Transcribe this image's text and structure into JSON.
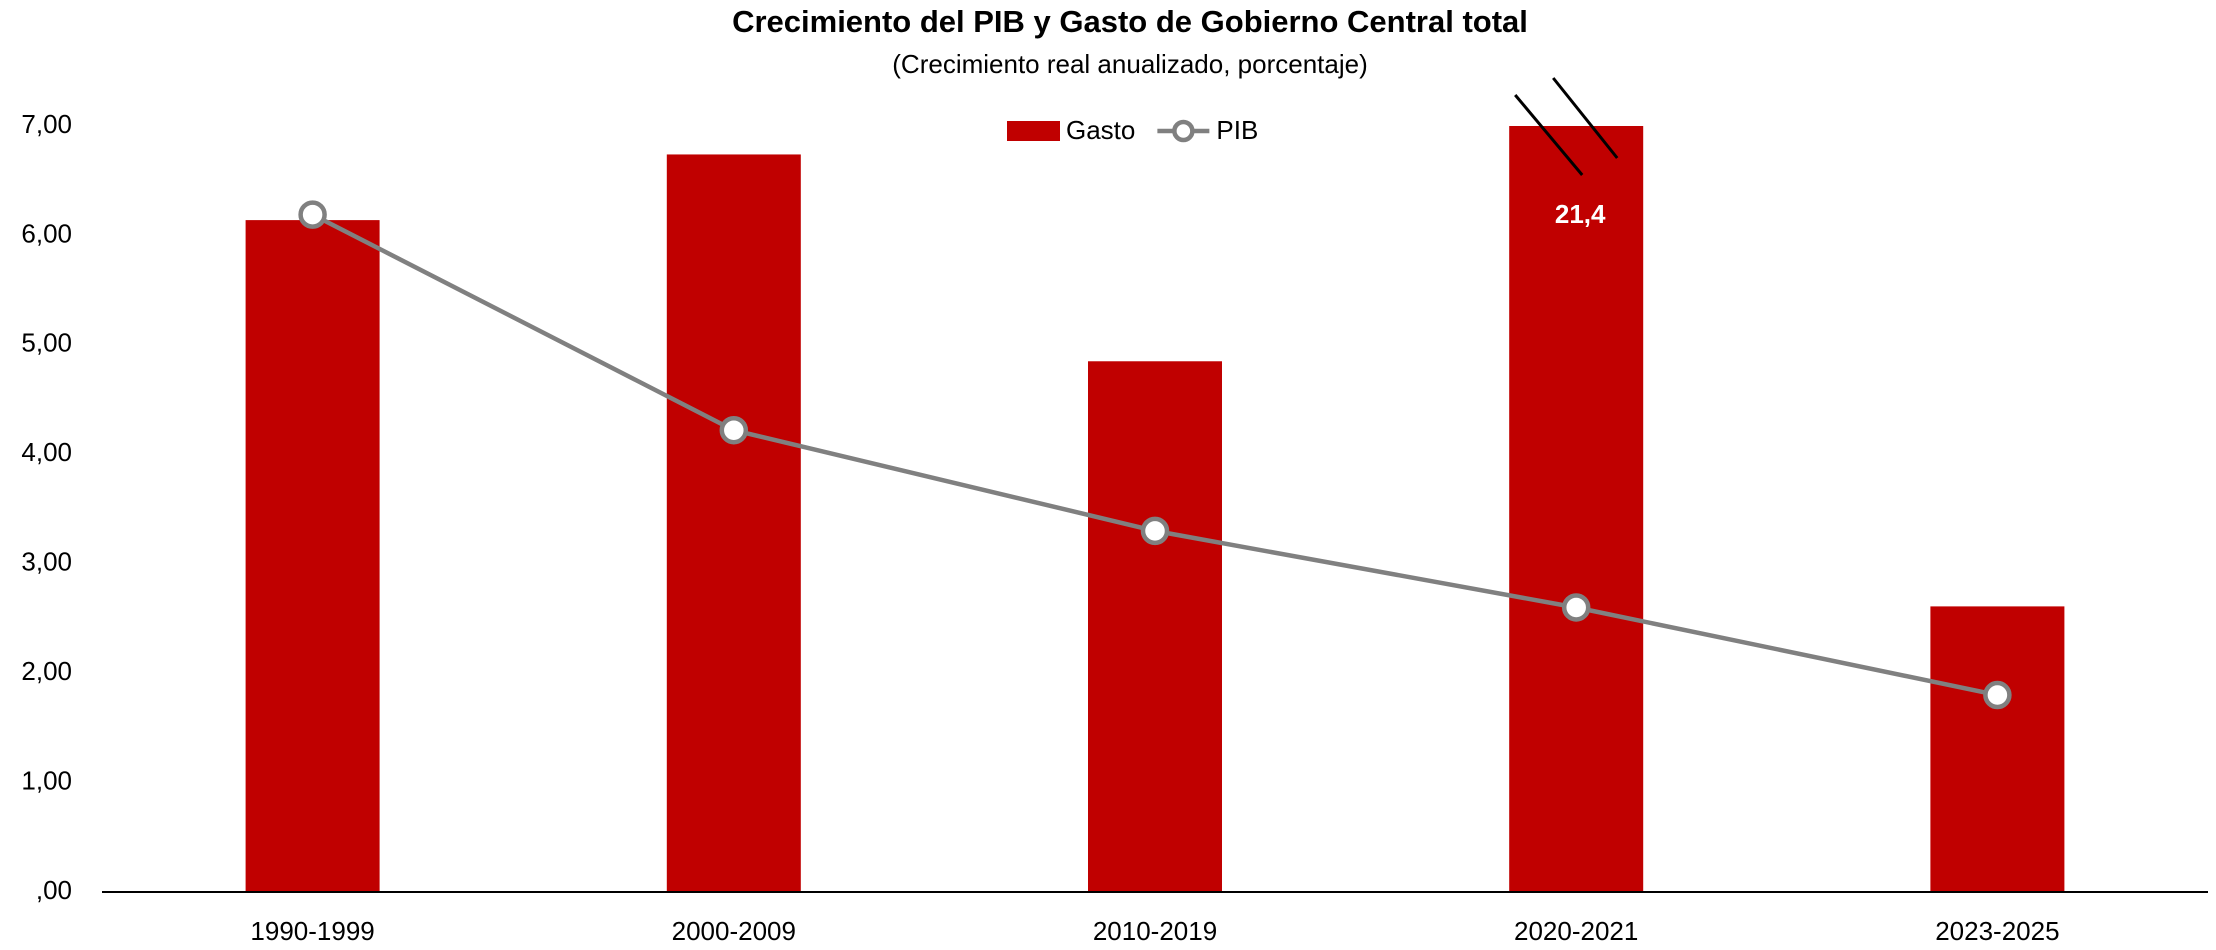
{
  "chart_data": {
    "type": "bar_line",
    "title": "Crecimiento del PIB y Gasto de Gobierno Central total",
    "subtitle": "(Crecimiento real anualizado, porcentaje)",
    "categories": [
      "1990-1999",
      "2000-2009",
      "2010-2019",
      "2020-2021",
      "2023-2025"
    ],
    "series": [
      {
        "name": "Gasto",
        "type": "bar",
        "color": "#c00000",
        "values": [
          6.14,
          6.74,
          4.85,
          21.4,
          2.61
        ],
        "value_labels": [
          null,
          null,
          null,
          "21,4",
          null
        ]
      },
      {
        "name": "PIB",
        "type": "line",
        "color": "#808080",
        "values": [
          6.19,
          4.22,
          3.3,
          2.6,
          1.8
        ]
      }
    ],
    "ylim": [
      0,
      7
    ],
    "yticks": [
      {
        "value": 0,
        "label": ",00"
      },
      {
        "value": 1,
        "label": "1,00"
      },
      {
        "value": 2,
        "label": "2,00"
      },
      {
        "value": 3,
        "label": "3,00"
      },
      {
        "value": 4,
        "label": "4,00"
      },
      {
        "value": 5,
        "label": "5,00"
      },
      {
        "value": 6,
        "label": "6,00"
      },
      {
        "value": 7,
        "label": "7,00"
      }
    ],
    "grid": false,
    "legend": "top"
  }
}
